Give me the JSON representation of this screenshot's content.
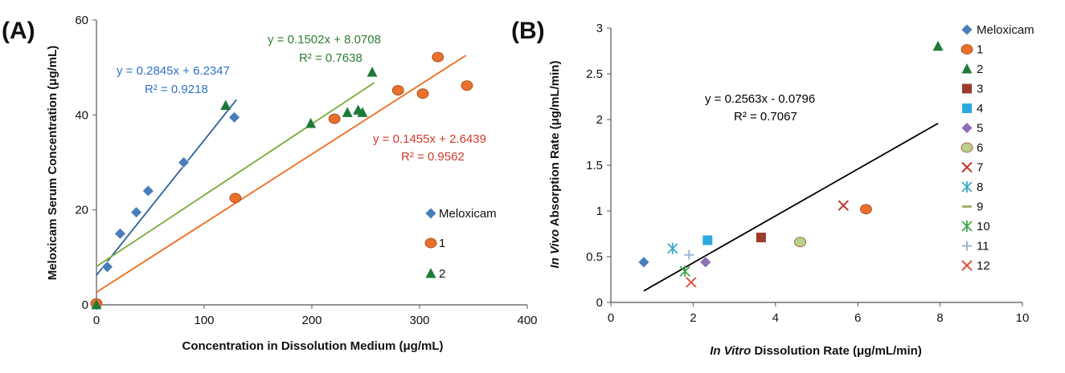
{
  "colors": {
    "meloxicam": "#4a7ebb",
    "f1": "#e8702a",
    "f2": "#1f7a3a",
    "f3": "#9b3b2c",
    "f4": "#2aa9e0",
    "f5": "#8f6fb5",
    "f6": "#b8d08c",
    "f7": "#c0392b",
    "f8": "#3aa8c7",
    "f9": "#9fb56b",
    "f10": "#3ea64b",
    "f11": "#9fb3d8",
    "f12": "#e0523f",
    "line_melox": "#2e5f9e",
    "line_f1": "#ef6b1c",
    "line_f2": "#7aaa3a",
    "eq_melox": "#2f72c4",
    "eq_f1": "#d33a2a",
    "eq_f2": "#2f7a32",
    "line_b": "#000000"
  },
  "chart_data": [
    {
      "type": "scatter",
      "panel_label": "(A)",
      "xlabel": "Concentration in Dissolution Medium (μg/mL)",
      "ylabel": "Meloxicam Serum Concentration (μg/mL)",
      "xlim": [
        0,
        400
      ],
      "ylim": [
        0,
        60
      ],
      "xticks": [
        0,
        100,
        200,
        300,
        400
      ],
      "yticks": [
        0,
        20,
        40,
        60
      ],
      "legend_position": "right",
      "series": [
        {
          "name": "Meloxicam",
          "marker": "diamond",
          "color_key": "meloxicam",
          "points": [
            [
              0,
              0
            ],
            [
              10,
              8
            ],
            [
              22,
              15
            ],
            [
              37,
              19.5
            ],
            [
              48,
              24
            ],
            [
              81,
              30
            ],
            [
              128,
              39.5
            ]
          ]
        },
        {
          "name": "1",
          "marker": "circle",
          "color_key": "f1",
          "points": [
            [
              0,
              0.3
            ],
            [
              129,
              22.5
            ],
            [
              221,
              39.2
            ],
            [
              280,
              45.2
            ],
            [
              303,
              44.5
            ],
            [
              317,
              52.2
            ],
            [
              344,
              46.2
            ]
          ]
        },
        {
          "name": "2",
          "marker": "triangle",
          "color_key": "f2",
          "points": [
            [
              0,
              0
            ],
            [
              120,
              42
            ],
            [
              199,
              38.2
            ],
            [
              233,
              40.5
            ],
            [
              243,
              41
            ],
            [
              247,
              40.5
            ],
            [
              256,
              49
            ]
          ]
        }
      ],
      "trendlines": [
        {
          "series": "Meloxicam",
          "color_key": "line_melox",
          "slope": 0.2845,
          "intercept": 6.2347,
          "x_range": [
            0,
            130
          ],
          "equation": "y = 0.2845x + 6.2347",
          "r2": "R² = 0.9218",
          "eq_color_key": "eq_melox"
        },
        {
          "series": "1",
          "color_key": "line_f1",
          "slope": 0.1455,
          "intercept": 2.6439,
          "x_range": [
            0,
            343
          ],
          "equation": "y = 0.1455x + 2.6439",
          "r2": "R² = 0.9562",
          "eq_color_key": "eq_f1"
        },
        {
          "series": "2",
          "color_key": "line_f2",
          "slope": 0.1502,
          "intercept": 8.0708,
          "x_range": [
            0,
            258
          ],
          "equation": "y = 0.1502x + 8.0708",
          "r2": "R² = 0.7638",
          "eq_color_key": "eq_f2"
        }
      ]
    },
    {
      "type": "scatter",
      "panel_label": "(B)",
      "xlabel_italic": "In Vitro",
      "xlabel_rest": " Dissolution Rate (μg/mL/min)",
      "ylabel_italic": "In Vivo",
      "ylabel_rest": " Absorption Rate (μg/mL/min)",
      "xlim": [
        0,
        10
      ],
      "ylim": [
        0,
        3
      ],
      "xticks": [
        0,
        2,
        4,
        6,
        8,
        10
      ],
      "yticks": [
        0,
        0.5,
        1,
        1.5,
        2,
        2.5,
        3
      ],
      "legend_position": "right",
      "series": [
        {
          "name": "Meloxicam",
          "marker": "diamond",
          "color_key": "meloxicam",
          "points": [
            [
              0.8,
              0.44
            ]
          ]
        },
        {
          "name": "1",
          "marker": "circle",
          "color_key": "f1",
          "points": [
            [
              6.2,
              1.02
            ]
          ]
        },
        {
          "name": "2",
          "marker": "triangle",
          "color_key": "f2",
          "points": [
            [
              7.95,
              2.8
            ]
          ]
        },
        {
          "name": "3",
          "marker": "square",
          "color_key": "f3",
          "points": [
            [
              3.65,
              0.71
            ]
          ]
        },
        {
          "name": "4",
          "marker": "square",
          "color_key": "f4",
          "points": [
            [
              2.35,
              0.68
            ]
          ]
        },
        {
          "name": "5",
          "marker": "diamond",
          "color_key": "f5",
          "points": [
            [
              2.3,
              0.44
            ]
          ]
        },
        {
          "name": "6",
          "marker": "circle",
          "color_key": "f6",
          "points": [
            [
              4.6,
              0.66
            ]
          ]
        },
        {
          "name": "7",
          "marker": "x",
          "color_key": "f7",
          "points": [
            [
              5.65,
              1.06
            ]
          ]
        },
        {
          "name": "8",
          "marker": "asterisk",
          "color_key": "f8",
          "points": [
            [
              1.5,
              0.59
            ]
          ]
        },
        {
          "name": "9",
          "marker": "dash",
          "color_key": "f9",
          "points": []
        },
        {
          "name": "10",
          "marker": "asterisk",
          "color_key": "f10",
          "points": [
            [
              1.8,
              0.34
            ]
          ]
        },
        {
          "name": "11",
          "marker": "plus",
          "color_key": "f11",
          "points": [
            [
              1.9,
              0.52
            ]
          ]
        },
        {
          "name": "12",
          "marker": "x",
          "color_key": "f12",
          "points": [
            [
              1.95,
              0.22
            ]
          ]
        }
      ],
      "trendlines": [
        {
          "series": "all",
          "color_key": "line_b",
          "slope": 0.2563,
          "intercept": -0.0796,
          "x_range": [
            0.8,
            7.95
          ],
          "equation": "y = 0.2563x - 0.0796",
          "r2": "R² = 0.7067",
          "eq_color_key": "line_b"
        }
      ]
    }
  ]
}
